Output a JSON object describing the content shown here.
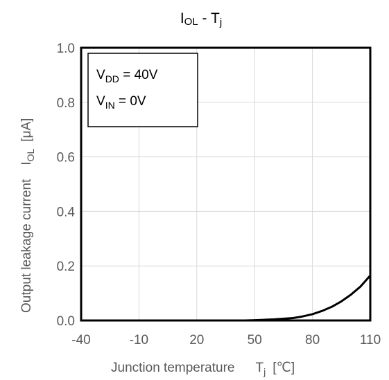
{
  "chart_data": {
    "type": "line",
    "title": {
      "main": "I",
      "sub": "OL",
      "rest": " - T",
      "rest_sub": "j"
    },
    "xlabel": {
      "text": "Junction temperature",
      "symbol": "T",
      "symbol_sub": "j",
      "unit": "[℃]"
    },
    "ylabel": {
      "text": "Output leakage current",
      "symbol": "I",
      "symbol_sub": "OL",
      "unit": "[μA]"
    },
    "xlim": [
      -40,
      110
    ],
    "ylim": [
      0,
      1.0
    ],
    "x_ticks": [
      "-40",
      "-10",
      "20",
      "50",
      "80",
      "110"
    ],
    "y_ticks": [
      "0.0",
      "0.2",
      "0.4",
      "0.6",
      "0.8",
      "1.0"
    ],
    "grid": true,
    "legend_box": [
      {
        "symbol": "V",
        "sub": "DD",
        "text": " = 40V"
      },
      {
        "symbol": "V",
        "sub": "IN",
        "text": " = 0V"
      }
    ],
    "series": [
      {
        "color": "#000000",
        "x": [
          -40,
          45,
          50,
          60,
          70,
          75,
          80,
          85,
          90,
          95,
          100,
          105,
          110
        ],
        "y": [
          0,
          0,
          0.001,
          0.004,
          0.009,
          0.015,
          0.023,
          0.035,
          0.05,
          0.07,
          0.095,
          0.125,
          0.165
        ]
      }
    ]
  }
}
